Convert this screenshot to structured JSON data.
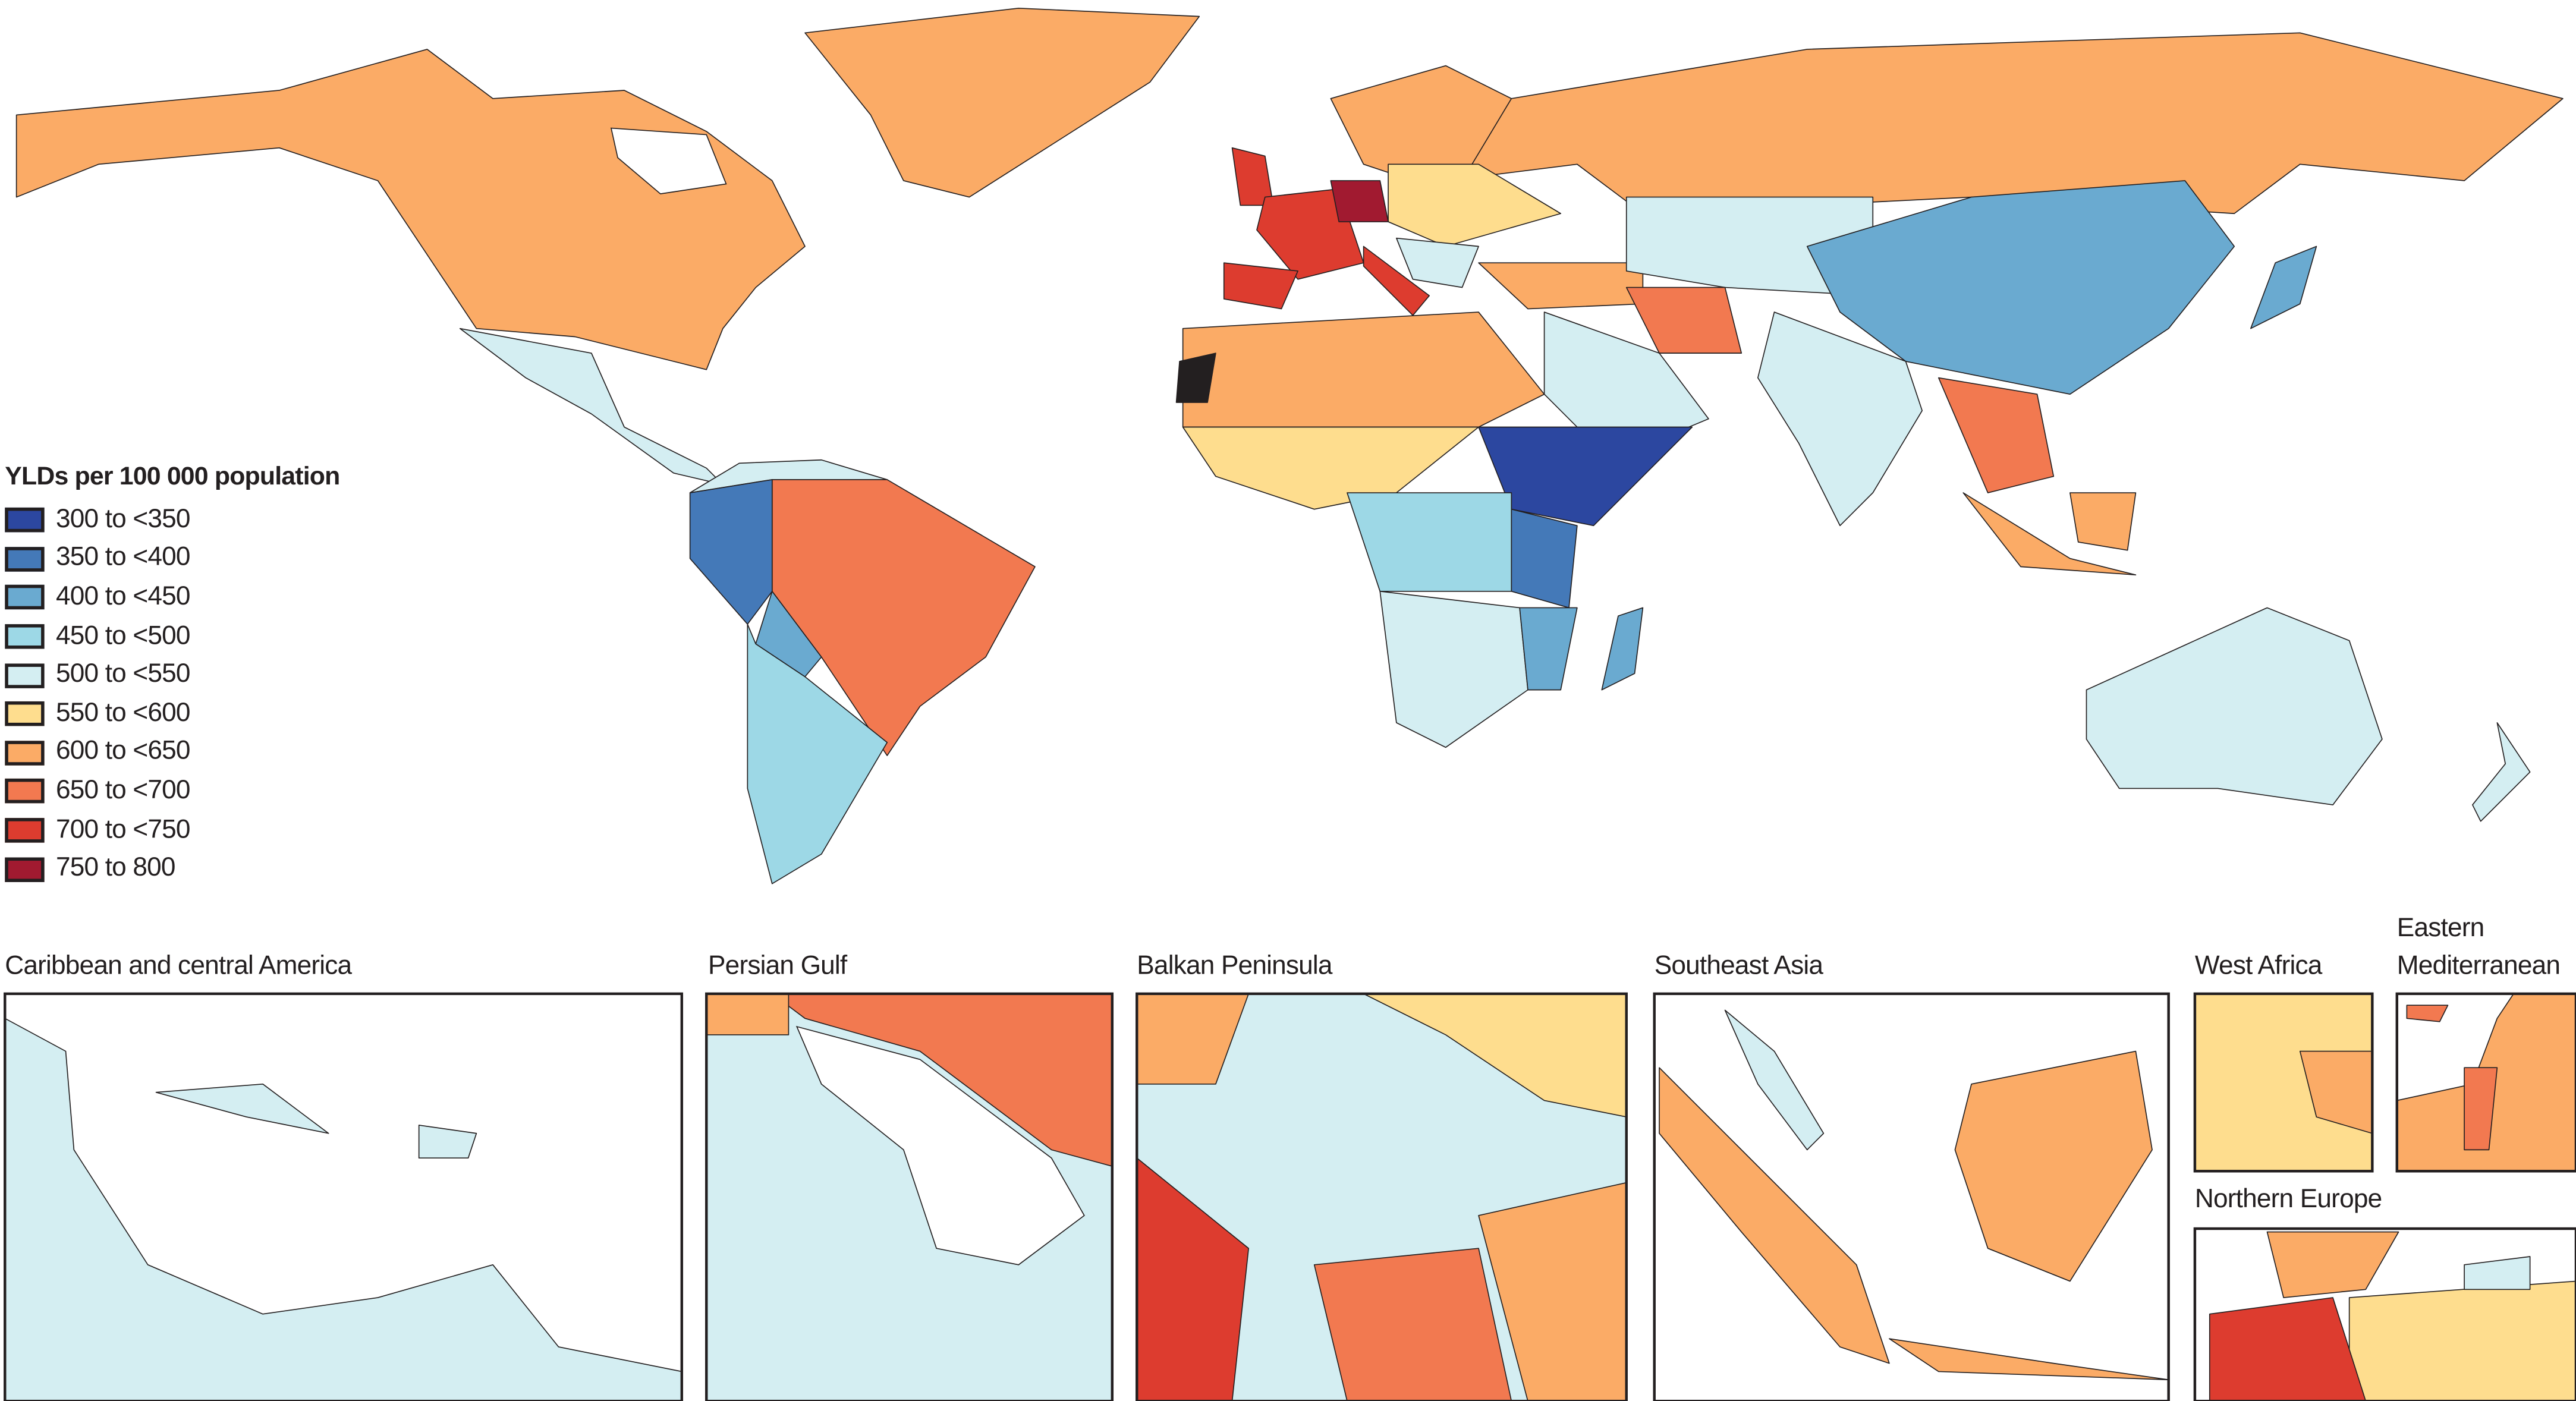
{
  "legend": {
    "title": "YLDs per 100 000 population",
    "bins": [
      {
        "label": "300 to <350",
        "color": "#2c47a0"
      },
      {
        "label": "350 to <400",
        "color": "#4479b8"
      },
      {
        "label": "400 to <450",
        "color": "#6aaad0"
      },
      {
        "label": "450 to <500",
        "color": "#9dd8e6"
      },
      {
        "label": "500 to <550",
        "color": "#d4eef2"
      },
      {
        "label": "550 to <600",
        "color": "#fedd8e"
      },
      {
        "label": "600 to <650",
        "color": "#fbab66"
      },
      {
        "label": "650 to <700",
        "color": "#f27950"
      },
      {
        "label": "700 to <750",
        "color": "#dd3c2f"
      },
      {
        "label": "750 to 800",
        "color": "#a11a30"
      }
    ],
    "no_data_color": "#231f20"
  },
  "insets": {
    "caribbean": "Caribbean and central America",
    "persian_gulf": "Persian Gulf",
    "balkan": "Balkan Peninsula",
    "southeast_asia": "Southeast Asia",
    "west_africa": "West Africa",
    "eastern_med_line1": "Eastern",
    "eastern_med_line2": "Mediterranean",
    "northern_europe": "Northern Europe"
  }
}
